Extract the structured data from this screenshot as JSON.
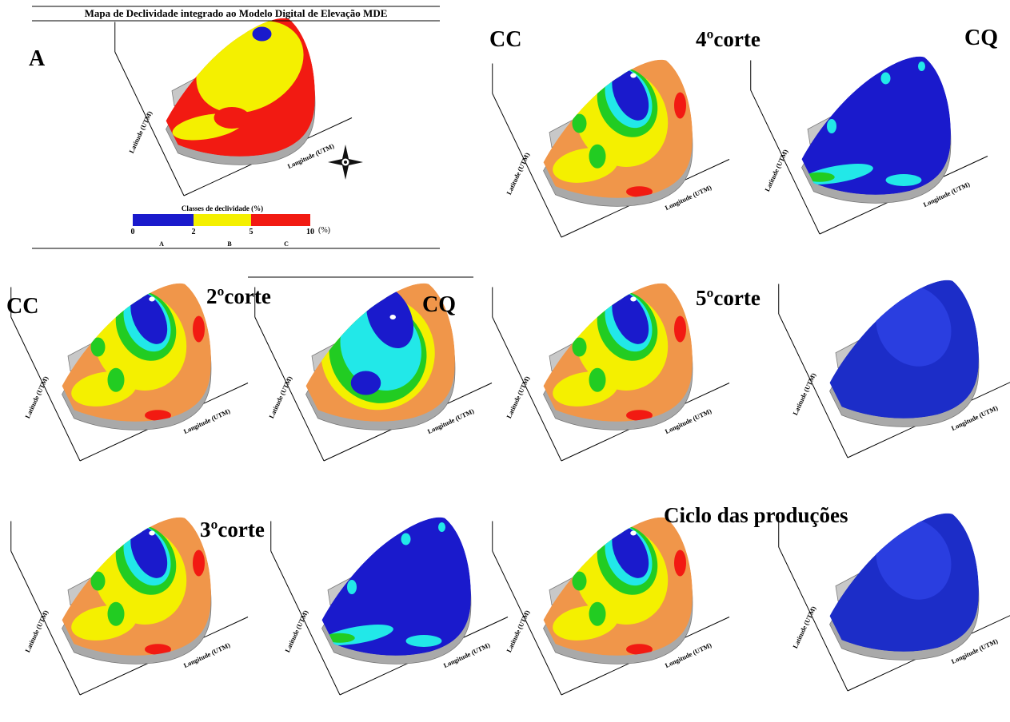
{
  "figure": {
    "title": "Mapa de Declividade integrado ao Modelo Digital de Elevação MDE",
    "panel_a": {
      "label": "A",
      "legend": {
        "title": "Classes de declividade (%)",
        "ticks": [
          "0",
          "2",
          "5",
          "10"
        ],
        "unit": "(%)",
        "classes": [
          "A",
          "B",
          "C"
        ]
      }
    },
    "labels": {
      "cc": "CC",
      "cq": "CQ"
    },
    "cuts": [
      "4ºcorte",
      "2ºcorte",
      "5ºcorte",
      "3ºcorte",
      "Ciclo das produções"
    ],
    "axis_labels": {
      "longitude": "Longitude (UTM)",
      "latitude": "Latitude (UTM)"
    }
  }
}
